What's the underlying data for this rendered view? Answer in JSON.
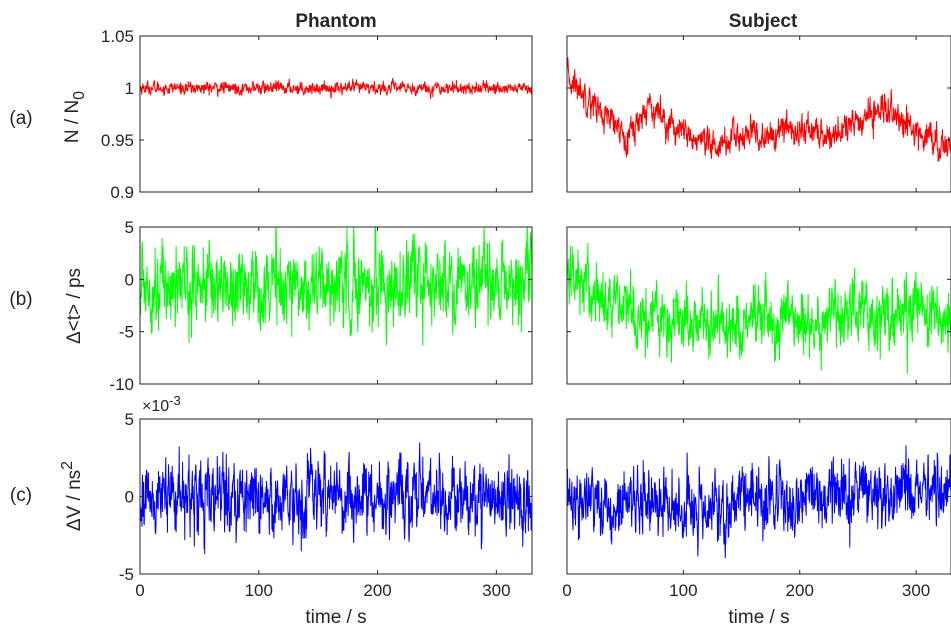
{
  "figure": {
    "columns": [
      "Phantom",
      "Subject"
    ],
    "row_labels": [
      "(a)",
      "(b)",
      "(c)"
    ],
    "xlabel": "time  / s",
    "ylabels": [
      "N / N0",
      "Δ<t>  / ps",
      "ΔV  / ns2"
    ],
    "exponent_label": "×10-3"
  },
  "colors": {
    "row_a": "#ff0000",
    "row_b": "#00ff00",
    "row_c": "#0000ff",
    "axes": "#262626"
  },
  "chart_data": [
    {
      "type": "line",
      "panel": "a-phantom",
      "title": "Phantom",
      "series": [
        {
          "color": "#ff0000",
          "x": [
            0,
            330
          ],
          "y": [
            1.0,
            1.0
          ],
          "noise": 0.0025
        }
      ],
      "xlim": [
        0,
        330
      ],
      "ylim": [
        0.9,
        1.05
      ],
      "xticks": [
        0,
        100,
        200,
        300
      ],
      "yticks": [
        0.9,
        0.95,
        1,
        1.05
      ],
      "ylabel": "N / N0",
      "grid": false
    },
    {
      "type": "line",
      "panel": "a-subject",
      "title": "Subject",
      "series": [
        {
          "color": "#ff0000",
          "x": [
            0,
            10,
            20,
            30,
            40,
            50,
            60,
            70,
            80,
            90,
            100,
            110,
            120,
            130,
            140,
            150,
            160,
            170,
            180,
            190,
            200,
            210,
            220,
            230,
            240,
            250,
            260,
            270,
            280,
            290,
            300,
            310,
            320,
            330
          ],
          "y": [
            1.01,
            1.0,
            0.99,
            0.975,
            0.965,
            0.955,
            0.965,
            0.985,
            0.975,
            0.965,
            0.955,
            0.95,
            0.942,
            0.945,
            0.95,
            0.953,
            0.955,
            0.952,
            0.955,
            0.962,
            0.958,
            0.96,
            0.953,
            0.955,
            0.962,
            0.965,
            0.975,
            0.98,
            0.975,
            0.963,
            0.96,
            0.955,
            0.945,
            0.945
          ],
          "noise": 0.006
        }
      ],
      "xlim": [
        0,
        330
      ],
      "ylim": [
        0.9,
        1.05
      ],
      "xticks": [
        0,
        100,
        200,
        300
      ],
      "yticks": [
        0.9,
        0.95,
        1,
        1.05
      ],
      "grid": false
    },
    {
      "type": "line",
      "panel": "b-phantom",
      "series": [
        {
          "color": "#00ff00",
          "x": [
            0,
            330
          ],
          "y": [
            -0.5,
            -0.5
          ],
          "noise": 1.6
        }
      ],
      "xlim": [
        0,
        330
      ],
      "ylim": [
        -10,
        5
      ],
      "xticks": [
        0,
        100,
        200,
        300
      ],
      "yticks": [
        -10,
        -5,
        0,
        5
      ],
      "ylabel": "Δ<t>  / ps",
      "grid": false
    },
    {
      "type": "line",
      "panel": "b-subject",
      "series": [
        {
          "color": "#00ff00",
          "x": [
            0,
            10,
            20,
            30,
            40,
            50,
            60,
            80,
            100,
            120,
            140,
            160,
            180,
            200,
            220,
            240,
            260,
            280,
            300,
            320,
            330
          ],
          "y": [
            0.5,
            0.2,
            -1,
            -1.8,
            -2.5,
            -3,
            -3.3,
            -3.4,
            -3.8,
            -4.1,
            -4.2,
            -4,
            -4.5,
            -4.1,
            -3.8,
            -3.5,
            -3.2,
            -3.5,
            -2.8,
            -3.8,
            -4
          ],
          "noise": 1.3
        }
      ],
      "xlim": [
        0,
        330
      ],
      "ylim": [
        -10,
        5
      ],
      "xticks": [
        0,
        100,
        200,
        300
      ],
      "yticks": [
        -10,
        -5,
        0,
        5
      ],
      "grid": false
    },
    {
      "type": "line",
      "panel": "c-phantom",
      "series": [
        {
          "color": "#0000ff",
          "x": [
            0,
            330
          ],
          "y": [
            0,
            0
          ],
          "noise": 0.001
        }
      ],
      "xlim": [
        0,
        330
      ],
      "ylim": [
        -0.005,
        0.005
      ],
      "xticks": [
        0,
        100,
        200,
        300
      ],
      "yticks": [
        -0.005,
        0,
        0.005
      ],
      "ytick_labels": [
        "-5",
        "0",
        "5"
      ],
      "xlabel": "time  / s",
      "ylabel": "ΔV  / ns2",
      "grid": false
    },
    {
      "type": "line",
      "panel": "c-subject",
      "series": [
        {
          "color": "#0000ff",
          "x": [
            0,
            50,
            100,
            130,
            150,
            200,
            250,
            300,
            330
          ],
          "y": [
            -0.0003,
            -0.0004,
            -0.0008,
            -0.0008,
            -0.0005,
            -0.0002,
            0.0002,
            0.0003,
            0.0001
          ],
          "noise": 0.0009
        }
      ],
      "xlim": [
        0,
        330
      ],
      "ylim": [
        -0.005,
        0.005
      ],
      "xticks": [
        0,
        100,
        200,
        300
      ],
      "yticks": [
        -0.005,
        0,
        0.005
      ],
      "xlabel": "time  / s",
      "grid": false
    }
  ]
}
